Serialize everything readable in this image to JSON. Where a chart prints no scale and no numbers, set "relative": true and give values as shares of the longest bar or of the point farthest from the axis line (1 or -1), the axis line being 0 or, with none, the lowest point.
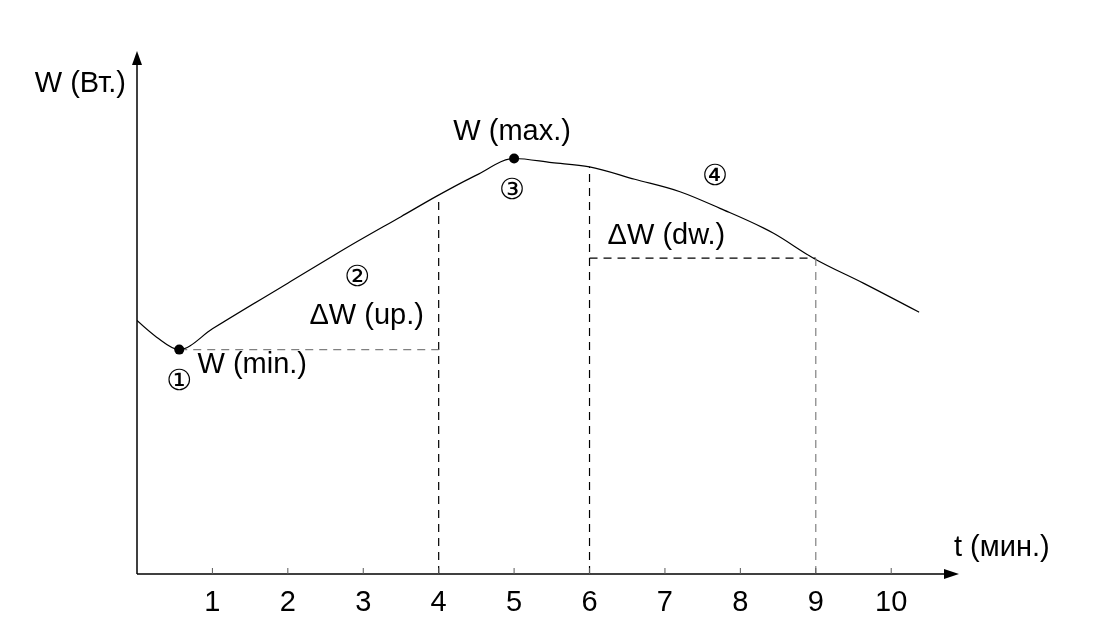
{
  "chart_data": {
    "type": "line",
    "relative": true,
    "xlabel": "t (мин.)",
    "ylabel": "W (Вт.)",
    "xlim": [
      0,
      10.7
    ],
    "xticks": [
      1,
      2,
      3,
      4,
      5,
      6,
      7,
      8,
      9,
      10
    ],
    "series": [
      {
        "color": "#000000",
        "x": [
          0,
          0.26,
          0.56,
          1,
          2,
          2.92,
          3.5,
          3.98,
          4.5,
          5,
          5.5,
          6,
          6.6,
          7.2,
          7.73,
          8.44,
          8.97,
          9.63,
          10.37
        ],
        "values": [
          0.61,
          0.57,
          0.54,
          0.59,
          0.7,
          0.8,
          0.86,
          0.91,
          0.96,
          1,
          0.99,
          0.98,
          0.95,
          0.92,
          0.88,
          0.82,
          0.76,
          0.7,
          0.63
        ]
      },
      {
        "color": "#000000",
        "line_style": "dashed",
        "x": [
          4,
          4
        ],
        "values": [
          0,
          0.91
        ]
      },
      {
        "color": "#808080",
        "line_style": "dashed",
        "x": [
          0.56,
          4
        ],
        "values": [
          0.54,
          0.54
        ]
      },
      {
        "color": "#000000",
        "line_style": "dashed",
        "x": [
          6,
          6
        ],
        "values": [
          0,
          0.98
        ]
      },
      {
        "color": "#000000",
        "line_style": "dashed",
        "x": [
          6,
          9
        ],
        "values": [
          0.76,
          0.76
        ]
      },
      {
        "color": "#808080",
        "line_style": "dashed",
        "x": [
          9,
          9
        ],
        "values": [
          0,
          0.76
        ]
      },
      {
        "type": "scatter",
        "color": "#000000",
        "marker": "circle",
        "x": [
          0.56,
          5
        ],
        "values": [
          0.54,
          1
        ]
      }
    ],
    "annotations": [
      {
        "text": "W (max.)",
        "x": 5,
        "y": 1
      },
      {
        "text": "W (min.)",
        "x": 0.56,
        "y": 0.54
      },
      {
        "text": "ΔW (up.)",
        "x": 4,
        "y": 0.63
      },
      {
        "text": "ΔW (dw.)",
        "x": 7.02,
        "y": 0.76
      },
      {
        "text": "①",
        "x": 0.56,
        "y": 0.54
      },
      {
        "text": "②",
        "x": 2.92,
        "y": 0.8
      },
      {
        "text": "③",
        "x": 5,
        "y": 1
      },
      {
        "text": "④",
        "x": 7.73,
        "y": 0.88
      }
    ]
  }
}
